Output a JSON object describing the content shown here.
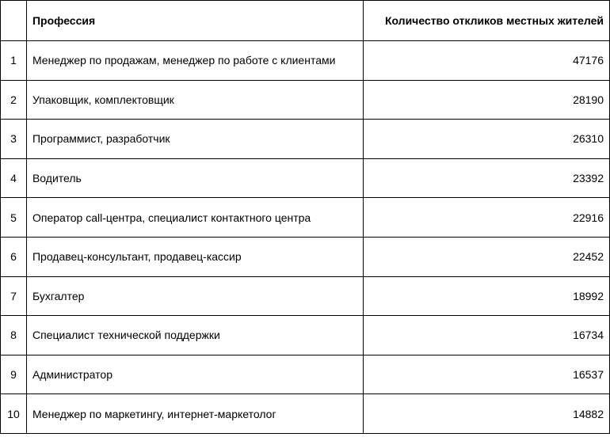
{
  "table": {
    "headers": [
      "",
      "Профессия",
      "Количество откликов местных жителей"
    ],
    "rows": [
      {
        "n": "1",
        "profession": "Менеджер по продажам, менеджер по работе с клиентами",
        "count": "47176"
      },
      {
        "n": "2",
        "profession": "Упаковщик, комплектовщик",
        "count": "28190"
      },
      {
        "n": "3",
        "profession": "Программист, разработчик",
        "count": "26310"
      },
      {
        "n": "4",
        "profession": "Водитель",
        "count": "23392"
      },
      {
        "n": "5",
        "profession": "Оператор call-центра, специалист контактного центра",
        "count": "22916"
      },
      {
        "n": "6",
        "profession": "Продавец-консультант, продавец-кассир",
        "count": "22452"
      },
      {
        "n": "7",
        "profession": "Бухгалтер",
        "count": "18992"
      },
      {
        "n": "8",
        "profession": "Специалист технической поддержки",
        "count": "16734"
      },
      {
        "n": "9",
        "profession": "Администратор",
        "count": "16537"
      },
      {
        "n": "10",
        "profession": "Менеджер по маркетингу, интернет-маркетолог",
        "count": "14882"
      }
    ]
  }
}
